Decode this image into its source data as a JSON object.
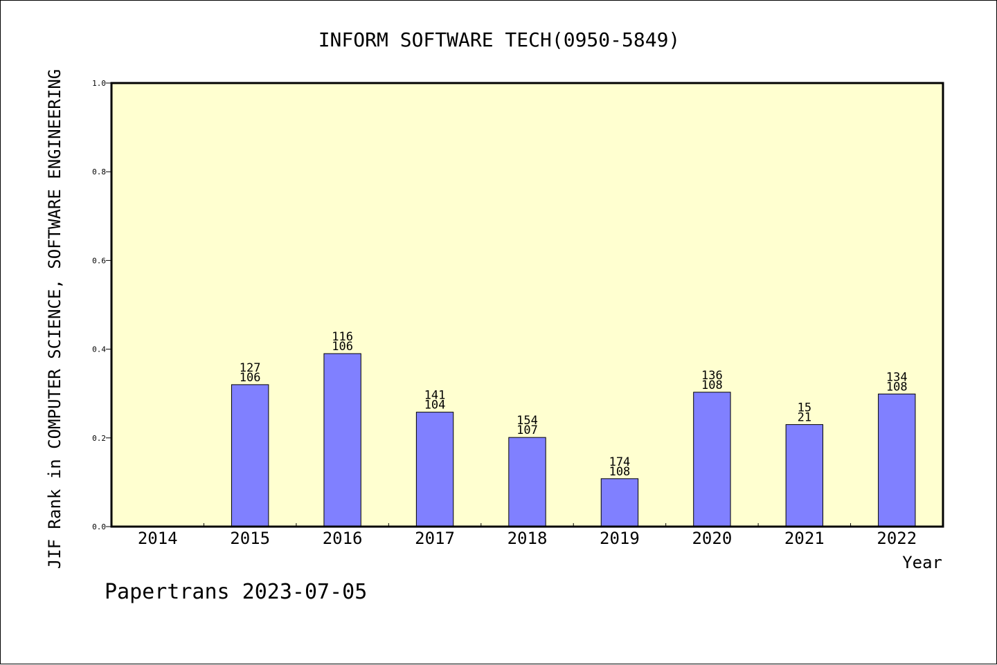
{
  "chart_data": {
    "type": "bar",
    "title": "INFORM SOFTWARE TECH(0950-5849)",
    "xlabel": "Year",
    "ylabel": "JIF Rank in COMPUTER SCIENCE, SOFTWARE ENGINEERING",
    "ylim": [
      0,
      1.0
    ],
    "yticks": [
      "0.0",
      "0.2",
      "0.4",
      "0.6",
      "0.8",
      "1.0"
    ],
    "categories": [
      "2014",
      "2015",
      "2016",
      "2017",
      "2018",
      "2019",
      "2020",
      "2021",
      "2022"
    ],
    "values": [
      null,
      0.32,
      0.39,
      0.258,
      0.201,
      0.108,
      0.303,
      0.23,
      0.299
    ],
    "rank_labels": [
      "",
      "127",
      "116",
      "141",
      "154",
      "174",
      "136",
      "15",
      "134"
    ],
    "total_labels": [
      "",
      "106",
      "106",
      "104",
      "107",
      "108",
      "108",
      "21",
      "108"
    ],
    "grid": false,
    "colors": {
      "plot_background": "#ffffd0",
      "bar_fill": "#8080ff",
      "bar_stroke": "#000000"
    }
  },
  "footer": {
    "credit": "Papertrans 2023-07-05"
  }
}
